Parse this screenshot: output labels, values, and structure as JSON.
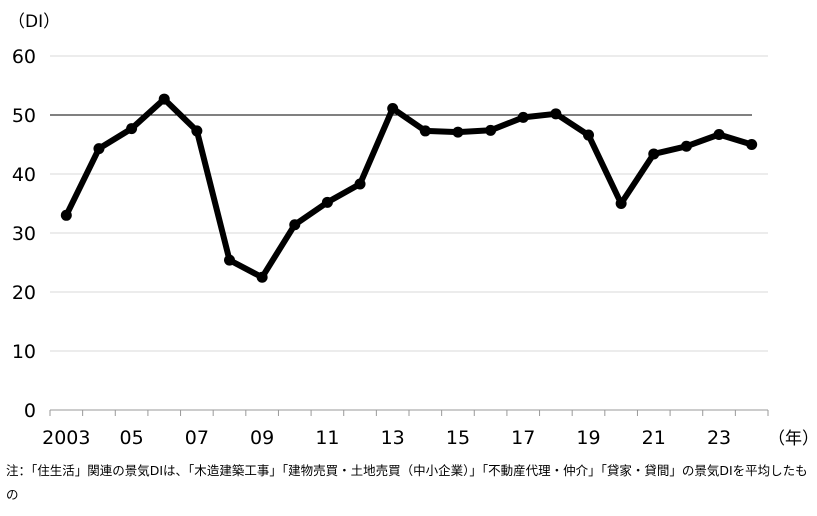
{
  "chart_data": {
    "type": "line",
    "title": "",
    "ylabel": "（DI）",
    "xlabel": "（年）",
    "ylim": [
      0,
      60
    ],
    "yticks": [
      0,
      10,
      20,
      30,
      40,
      50,
      60
    ],
    "grid": true,
    "reference_line": 50,
    "x": [
      2003,
      2004,
      2005,
      2006,
      2007,
      2008,
      2009,
      2010,
      2011,
      2012,
      2013,
      2014,
      2015,
      2016,
      2017,
      2018,
      2019,
      2020,
      2021,
      2022,
      2023,
      2024
    ],
    "x_tick_labels": [
      {
        "x": 2003,
        "label": "2003"
      },
      {
        "x": 2005,
        "label": "05"
      },
      {
        "x": 2007,
        "label": "07"
      },
      {
        "x": 2009,
        "label": "09"
      },
      {
        "x": 2011,
        "label": "11"
      },
      {
        "x": 2013,
        "label": "13"
      },
      {
        "x": 2015,
        "label": "15"
      },
      {
        "x": 2017,
        "label": "17"
      },
      {
        "x": 2019,
        "label": "19"
      },
      {
        "x": 2021,
        "label": "21"
      },
      {
        "x": 2023,
        "label": "23"
      }
    ],
    "series": [
      {
        "values": [
          33.0,
          44.3,
          47.7,
          52.7,
          47.3,
          25.4,
          22.5,
          31.4,
          35.2,
          38.3,
          51.1,
          47.3,
          47.1,
          47.4,
          49.6,
          50.2,
          46.6,
          35.0,
          43.4,
          44.7,
          46.7,
          45.0
        ],
        "color": "#000000"
      }
    ]
  },
  "note": "注：「住生活」関連の景気DIは、「木造建築工事」「建物売買・土地売買（中小企業）」「不動産代理・仲介」「貸家・貸間」の景気DIを平均したもの"
}
